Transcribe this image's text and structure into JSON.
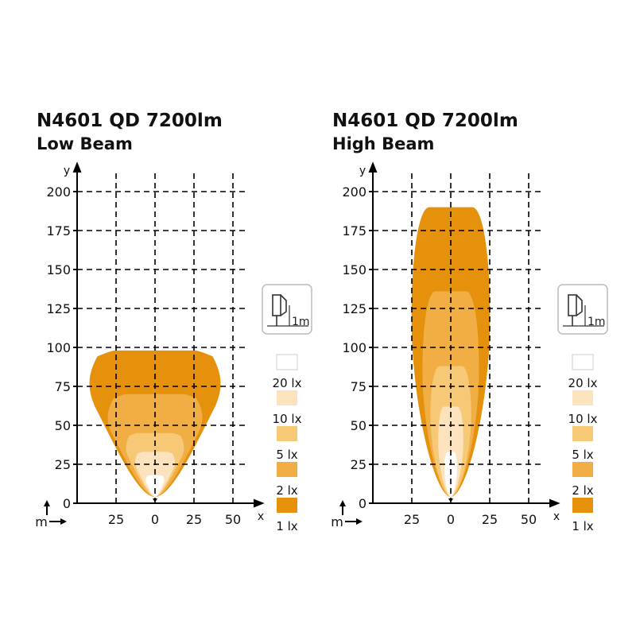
{
  "colors": {
    "lx1": "#e5910c",
    "lx2": "#f0ae45",
    "lx5": "#f7c875",
    "lx10": "#fce3bd",
    "lx20": "#ffffff",
    "grid": "#000000"
  },
  "icon": {
    "name": "mounting-height-icon",
    "label": "1m"
  },
  "legend": [
    "20 lx",
    "10 lx",
    "5 lx",
    "2 lx",
    "1 lx"
  ],
  "axis_unit_label": "m",
  "chart_data": [
    {
      "type": "isolux-contour",
      "title": "N4601 QD 7200lm",
      "subtitle": "Low Beam",
      "xlabel": "x",
      "ylabel": "y",
      "x_ticks": [
        "25",
        "0",
        "25",
        "50"
      ],
      "y_ticks": [
        "0",
        "25",
        "50",
        "75",
        "100",
        "125",
        "150",
        "175",
        "200"
      ],
      "xlim": [
        -50,
        50
      ],
      "ylim": [
        0,
        200
      ],
      "grid": "dashed",
      "contours": [
        {
          "lux": "1 lx",
          "max_distance_m": 98,
          "max_half_width_m": 43
        },
        {
          "lux": "2 lx",
          "max_distance_m": 70,
          "max_half_width_m": 31
        },
        {
          "lux": "5 lx",
          "max_distance_m": 45,
          "max_half_width_m": 19
        },
        {
          "lux": "10 lx",
          "max_distance_m": 33,
          "max_half_width_m": 13
        },
        {
          "lux": "20 lx",
          "max_distance_m": 18,
          "max_half_width_m": 6
        }
      ]
    },
    {
      "type": "isolux-contour",
      "title": "N4601 QD 7200lm",
      "subtitle": "High Beam",
      "xlabel": "x",
      "ylabel": "y",
      "x_ticks": [
        "25",
        "0",
        "25",
        "50"
      ],
      "y_ticks": [
        "0",
        "25",
        "50",
        "75",
        "100",
        "125",
        "150",
        "175",
        "200"
      ],
      "xlim": [
        -50,
        50
      ],
      "ylim": [
        0,
        200
      ],
      "grid": "dashed",
      "contours": [
        {
          "lux": "1 lx",
          "max_distance_m": 190,
          "max_half_width_m": 25
        },
        {
          "lux": "2 lx",
          "max_distance_m": 136,
          "max_half_width_m": 18
        },
        {
          "lux": "5 lx",
          "max_distance_m": 88,
          "max_half_width_m": 13
        },
        {
          "lux": "10 lx",
          "max_distance_m": 62,
          "max_half_width_m": 8
        },
        {
          "lux": "20 lx",
          "max_distance_m": 33,
          "max_half_width_m": 4
        }
      ]
    }
  ]
}
